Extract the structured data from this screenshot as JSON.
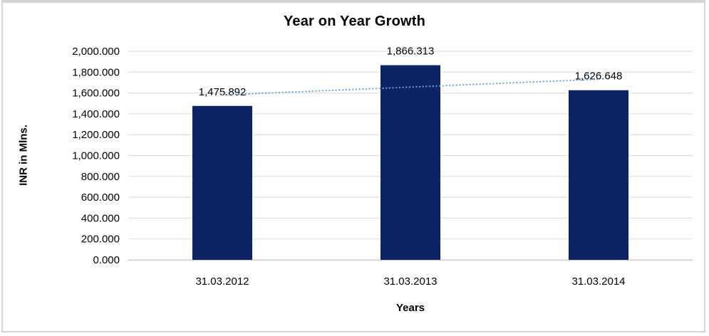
{
  "chart_data": {
    "type": "bar",
    "title": "Year on Year Growth",
    "xlabel": "Years",
    "ylabel": "INR in Mlns.",
    "categories": [
      "31.03.2012",
      "31.03.2013",
      "31.03.2014"
    ],
    "values": [
      1475.892,
      1866.313,
      1626.648
    ],
    "data_labels": [
      "1,475.892",
      "1,866.313",
      "1,626.648"
    ],
    "ylim": [
      0,
      2000
    ],
    "y_tick_step": 200,
    "y_tick_labels": [
      "0.000",
      "200.000",
      "400.000",
      "600.000",
      "800.000",
      "1,000.000",
      "1,200.000",
      "1,400.000",
      "1,600.000",
      "1,800.000",
      "2,000.000"
    ],
    "grid": true,
    "legend": "none",
    "bar_color": "#0e2464",
    "gridline_color": "#d9d9d9",
    "axis_line_color": "#c8c8c8",
    "text_color": "#000000",
    "trendline": {
      "type": "linear",
      "style": "dotted",
      "color": "#6a9fd8"
    }
  }
}
